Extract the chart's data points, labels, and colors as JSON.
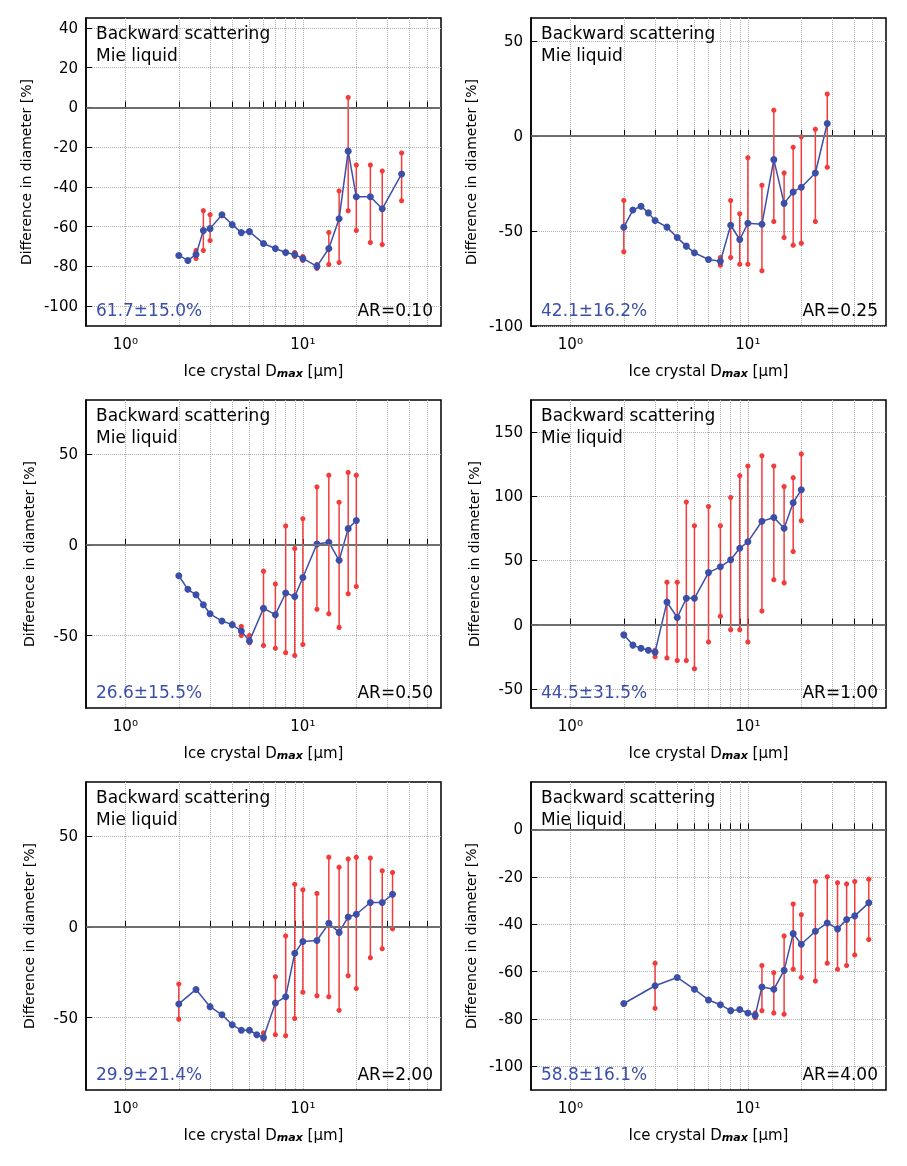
{
  "chart_data": [
    {
      "type": "line",
      "xlabel": "Ice crystal D$_{max}$ [μm]",
      "ylabel": "Difference in diameter [%]",
      "log": "x",
      "xlim": [
        0.6,
        60
      ],
      "ylim": [
        -110,
        45
      ],
      "xticks": [
        {
          "value": 1,
          "label": "10⁰"
        },
        {
          "value": 2,
          "label": null
        },
        {
          "value": 3,
          "label": null
        },
        {
          "value": 4,
          "label": null
        },
        {
          "value": 5,
          "label": null
        },
        {
          "value": 6,
          "label": null
        },
        {
          "value": 7,
          "label": null
        },
        {
          "value": 8,
          "label": null
        },
        {
          "value": 9,
          "label": null
        },
        {
          "value": 10,
          "label": "10¹"
        },
        {
          "value": 20,
          "label": null
        },
        {
          "value": 30,
          "label": null
        },
        {
          "value": 40,
          "label": null
        },
        {
          "value": 50,
          "label": null
        }
      ],
      "yticks": [
        -100,
        -80,
        -60,
        -40,
        -20,
        0,
        20,
        40
      ],
      "grid": true,
      "marker": "circle",
      "line_style": "solid",
      "ref_lines": [
        {
          "axis": "y",
          "value": 0,
          "color": "#808080"
        }
      ],
      "annotations": [
        "Backward scattering",
        "Mie liquid",
        "61.7±15.0%",
        "AR=0.10"
      ],
      "series": [
        {
          "color": "#3c4fa8",
          "x": [
            2,
            2.25,
            2.5,
            2.75,
            3,
            3.5,
            4,
            4.5,
            5,
            6,
            7,
            8,
            9,
            10,
            12,
            14,
            16,
            18,
            20,
            24,
            28,
            36
          ],
          "values": [
            -74.5,
            -77,
            -74,
            -62,
            -61,
            -54,
            -59,
            -63,
            -62.5,
            -68.5,
            -71,
            -73,
            -74,
            -76,
            -80,
            -71,
            -56,
            -22,
            -45,
            -45,
            -51,
            -33.5
          ],
          "errors": [
            null,
            null,
            [
              -76,
              -72
            ],
            [
              -72,
              -52
            ],
            [
              -67,
              -54
            ],
            null,
            null,
            null,
            null,
            null,
            null,
            null,
            [
              -75,
              -73
            ],
            [
              -77,
              -75
            ],
            [
              -81,
              -79
            ],
            [
              -79,
              -63
            ],
            [
              -78,
              -42
            ],
            [
              -52,
              5
            ],
            [
              -62,
              -29
            ],
            [
              -68,
              -29
            ],
            [
              -69,
              -32
            ],
            [
              -47,
              -23
            ]
          ]
        }
      ]
    },
    {
      "type": "line",
      "xlabel": "Ice crystal D$_{max}$ [μm]",
      "ylabel": "Difference in diameter [%]",
      "log": "x",
      "xlim": [
        0.6,
        60
      ],
      "ylim": [
        -100,
        62
      ],
      "xticks": [
        {
          "value": 1,
          "label": "10⁰"
        },
        {
          "value": 2,
          "label": null
        },
        {
          "value": 3,
          "label": null
        },
        {
          "value": 4,
          "label": null
        },
        {
          "value": 5,
          "label": null
        },
        {
          "value": 6,
          "label": null
        },
        {
          "value": 7,
          "label": null
        },
        {
          "value": 8,
          "label": null
        },
        {
          "value": 9,
          "label": null
        },
        {
          "value": 10,
          "label": "10¹"
        },
        {
          "value": 20,
          "label": null
        },
        {
          "value": 30,
          "label": null
        },
        {
          "value": 40,
          "label": null
        },
        {
          "value": 50,
          "label": null
        }
      ],
      "yticks": [
        -100,
        -50,
        0,
        50
      ],
      "grid": true,
      "marker": "circle",
      "line_style": "solid",
      "ref_lines": [
        {
          "axis": "y",
          "value": 0,
          "color": "#808080"
        }
      ],
      "annotations": [
        "Backward scattering",
        "Mie liquid",
        "42.1±16.2%",
        "AR=0.25"
      ],
      "series": [
        {
          "color": "#3c4fa8",
          "x": [
            2,
            2.25,
            2.5,
            2.75,
            3,
            3.5,
            4,
            4.5,
            5,
            6,
            7,
            8,
            9,
            10,
            12,
            14,
            16,
            18,
            20,
            24,
            28
          ],
          "values": [
            -48,
            -39,
            -37,
            -40.5,
            -44.5,
            -48,
            -53.5,
            -58,
            -61.5,
            -65,
            -66,
            -47,
            -54.5,
            -46,
            -46.5,
            -12.5,
            -35.5,
            -29.5,
            -27,
            -19.5,
            6.5
          ],
          "errors": [
            [
              -61,
              -34
            ],
            null,
            null,
            null,
            null,
            null,
            null,
            null,
            null,
            null,
            [
              -68,
              -64
            ],
            [
              -64,
              -34
            ],
            [
              -67.5,
              -41
            ],
            [
              -67.5,
              -11.5
            ],
            [
              -71,
              -26
            ],
            [
              -45,
              13.5
            ],
            [
              -53.5,
              -19.5
            ],
            [
              -57.5,
              -6
            ],
            [
              -56.5,
              -0.5
            ],
            [
              -45,
              3.5
            ],
            [
              -16.5,
              22
            ]
          ]
        }
      ]
    },
    {
      "type": "line",
      "xlabel": "Ice crystal D$_{max}$ [μm]",
      "ylabel": "Difference in diameter [%]",
      "log": "x",
      "xlim": [
        0.6,
        60
      ],
      "ylim": [
        -90,
        80
      ],
      "xticks": [
        {
          "value": 1,
          "label": "10⁰"
        },
        {
          "value": 2,
          "label": null
        },
        {
          "value": 3,
          "label": null
        },
        {
          "value": 4,
          "label": null
        },
        {
          "value": 5,
          "label": null
        },
        {
          "value": 6,
          "label": null
        },
        {
          "value": 7,
          "label": null
        },
        {
          "value": 8,
          "label": null
        },
        {
          "value": 9,
          "label": null
        },
        {
          "value": 10,
          "label": "10¹"
        },
        {
          "value": 20,
          "label": null
        },
        {
          "value": 30,
          "label": null
        },
        {
          "value": 40,
          "label": null
        },
        {
          "value": 50,
          "label": null
        }
      ],
      "yticks": [
        -50,
        0,
        50
      ],
      "grid": true,
      "marker": "circle",
      "line_style": "solid",
      "ref_lines": [
        {
          "axis": "y",
          "value": 0,
          "color": "#808080"
        }
      ],
      "annotations": [
        "Backward scattering",
        "Mie liquid",
        "26.6±15.5%",
        "AR=0.50"
      ],
      "series": [
        {
          "color": "#3c4fa8",
          "x": [
            2,
            2.25,
            2.5,
            2.75,
            3,
            3.5,
            4,
            4.5,
            5,
            6,
            7,
            8,
            9,
            10,
            12,
            14,
            16,
            18,
            20
          ],
          "values": [
            -17,
            -24.5,
            -27.5,
            -33,
            -38,
            -42,
            -44,
            -47.5,
            -53,
            -35,
            -38.5,
            -26.5,
            -28.5,
            -18,
            0.5,
            1.5,
            -8.5,
            9,
            13.5
          ],
          "errors": [
            null,
            null,
            null,
            null,
            null,
            null,
            null,
            [
              -50,
              -45
            ],
            [
              -54,
              -50
            ],
            [
              -55.5,
              -14.5
            ],
            [
              -57,
              -21.5
            ],
            [
              -59.5,
              10.5
            ],
            [
              -61,
              -2
            ],
            [
              -55,
              14.5
            ],
            [
              -35.5,
              32
            ],
            [
              -38,
              38.5
            ],
            [
              -45.5,
              23.5
            ],
            [
              -27,
              40
            ],
            [
              -23,
              38.5
            ]
          ]
        }
      ]
    },
    {
      "type": "line",
      "xlabel": "Ice crystal D$_{max}$ [μm]",
      "ylabel": "Difference in diameter [%]",
      "log": "x",
      "xlim": [
        0.6,
        60
      ],
      "ylim": [
        -65,
        175
      ],
      "xticks": [
        {
          "value": 1,
          "label": "10⁰"
        },
        {
          "value": 2,
          "label": null
        },
        {
          "value": 3,
          "label": null
        },
        {
          "value": 4,
          "label": null
        },
        {
          "value": 5,
          "label": null
        },
        {
          "value": 6,
          "label": null
        },
        {
          "value": 7,
          "label": null
        },
        {
          "value": 8,
          "label": null
        },
        {
          "value": 9,
          "label": null
        },
        {
          "value": 10,
          "label": "10¹"
        },
        {
          "value": 20,
          "label": null
        },
        {
          "value": 30,
          "label": null
        },
        {
          "value": 40,
          "label": null
        },
        {
          "value": 50,
          "label": null
        }
      ],
      "yticks": [
        -50,
        0,
        50,
        100,
        150
      ],
      "grid": true,
      "marker": "circle",
      "line_style": "solid",
      "ref_lines": [
        {
          "axis": "y",
          "value": 0,
          "color": "#808080"
        }
      ],
      "annotations": [
        "Backward scattering",
        "Mie liquid",
        "44.5±31.5%",
        "AR=1.00"
      ],
      "series": [
        {
          "color": "#3c4fa8",
          "x": [
            2,
            2.25,
            2.5,
            2.75,
            3,
            3.5,
            4,
            4.5,
            5,
            6,
            7,
            8,
            9,
            10,
            12,
            14,
            16,
            18,
            20
          ],
          "values": [
            -8,
            -16,
            -18.5,
            -20,
            -21.5,
            17.5,
            5.5,
            20.5,
            20.5,
            40.5,
            45,
            50.5,
            59.5,
            64.5,
            80.5,
            83.5,
            75,
            95,
            105
          ],
          "errors": [
            null,
            null,
            null,
            null,
            [
              -25,
              -20
            ],
            [
              -26,
              33
            ],
            [
              -28,
              33
            ],
            [
              -28,
              95.5
            ],
            [
              -34.5,
              77
            ],
            [
              -13.5,
              92
            ],
            [
              6.5,
              77
            ],
            [
              -4,
              99
            ],
            [
              -4,
              116
            ],
            [
              -13.5,
              123.5
            ],
            [
              10.5,
              131.5
            ],
            [
              35,
              123.5
            ],
            [
              32.5,
              107.5
            ],
            [
              57,
              114.5
            ],
            [
              81,
              133
            ]
          ]
        }
      ]
    },
    {
      "type": "line",
      "xlabel": "Ice crystal D$_{max}$ [μm]",
      "ylabel": "Difference in diameter [%]",
      "log": "x",
      "xlim": [
        0.6,
        60
      ],
      "ylim": [
        -90,
        80
      ],
      "xticks": [
        {
          "value": 1,
          "label": "10⁰"
        },
        {
          "value": 2,
          "label": null
        },
        {
          "value": 3,
          "label": null
        },
        {
          "value": 4,
          "label": null
        },
        {
          "value": 5,
          "label": null
        },
        {
          "value": 6,
          "label": null
        },
        {
          "value": 7,
          "label": null
        },
        {
          "value": 8,
          "label": null
        },
        {
          "value": 9,
          "label": null
        },
        {
          "value": 10,
          "label": "10¹"
        },
        {
          "value": 20,
          "label": null
        },
        {
          "value": 30,
          "label": null
        },
        {
          "value": 40,
          "label": null
        },
        {
          "value": 50,
          "label": null
        }
      ],
      "yticks": [
        -50,
        0,
        50
      ],
      "grid": true,
      "marker": "circle",
      "line_style": "solid",
      "ref_lines": [
        {
          "axis": "y",
          "value": 0,
          "color": "#808080"
        }
      ],
      "annotations": [
        "Backward scattering",
        "Mie liquid",
        "29.9±21.4%",
        "AR=2.00"
      ],
      "series": [
        {
          "color": "#3c4fa8",
          "x": [
            2,
            2.5,
            3,
            3.5,
            4,
            4.5,
            5,
            5.5,
            6,
            7,
            8,
            9,
            10,
            12,
            14,
            16,
            18,
            20,
            24,
            28,
            32
          ],
          "values": [
            -42.5,
            -34.5,
            -44,
            -48.5,
            -54,
            -57,
            -57,
            -59.5,
            -61,
            -42,
            -38.5,
            -14.5,
            -8,
            -7.5,
            2,
            -3,
            5.5,
            7,
            13.5,
            13.5,
            18
          ],
          "errors": [
            [
              -51,
              -31.5
            ],
            null,
            null,
            null,
            null,
            null,
            null,
            null,
            [
              -62,
              -58.5
            ],
            [
              -59.5,
              -27.5
            ],
            [
              -60,
              -5
            ],
            [
              -50.5,
              23.5
            ],
            [
              -36,
              20.5
            ],
            [
              -38,
              18.5
            ],
            [
              -38.5,
              38.5
            ],
            [
              -46,
              33
            ],
            [
              -27,
              37.5
            ],
            [
              -34,
              38.5
            ],
            [
              -17,
              38
            ],
            [
              -12,
              31
            ],
            [
              -1,
              30
            ]
          ]
        }
      ]
    },
    {
      "type": "line",
      "xlabel": "Ice crystal D$_{max}$ [μm]",
      "ylabel": "Difference in diameter [%]",
      "log": "x",
      "xlim": [
        0.6,
        60
      ],
      "ylim": [
        -110,
        20
      ],
      "xticks": [
        {
          "value": 1,
          "label": "10⁰"
        },
        {
          "value": 2,
          "label": null
        },
        {
          "value": 3,
          "label": null
        },
        {
          "value": 4,
          "label": null
        },
        {
          "value": 5,
          "label": null
        },
        {
          "value": 6,
          "label": null
        },
        {
          "value": 7,
          "label": null
        },
        {
          "value": 8,
          "label": null
        },
        {
          "value": 9,
          "label": null
        },
        {
          "value": 10,
          "label": "10¹"
        },
        {
          "value": 20,
          "label": null
        },
        {
          "value": 30,
          "label": null
        },
        {
          "value": 40,
          "label": null
        },
        {
          "value": 50,
          "label": null
        }
      ],
      "yticks": [
        -100,
        -80,
        -60,
        -40,
        -20,
        0
      ],
      "grid": true,
      "marker": "circle",
      "line_style": "solid",
      "ref_lines": [
        {
          "axis": "y",
          "value": 0,
          "color": "#808080"
        }
      ],
      "annotations": [
        "Backward scattering",
        "Mie liquid",
        "58.8±16.1%",
        "AR=4.00"
      ],
      "series": [
        {
          "color": "#3c4fa8",
          "x": [
            2,
            3,
            4,
            5,
            6,
            7,
            8,
            9,
            10,
            11,
            12,
            14,
            16,
            18,
            20,
            24,
            28,
            32,
            36,
            40,
            48
          ],
          "values": [
            -73.5,
            -66,
            -62.5,
            -67.5,
            -72,
            -74,
            -76.5,
            -76,
            -77.5,
            -78.5,
            -66.5,
            -67.5,
            -59.5,
            -44,
            -48.5,
            -43,
            -39.5,
            -42,
            -38,
            -36.5,
            -31
          ],
          "errors": [
            null,
            [
              -75.5,
              -56.5
            ],
            null,
            null,
            null,
            null,
            null,
            null,
            null,
            [
              -79.5,
              -77.5
            ],
            [
              -76.5,
              -57.5
            ],
            [
              -77.5,
              -60.5
            ],
            [
              -78,
              -45
            ],
            [
              -59,
              -31.5
            ],
            [
              -62.5,
              -36
            ],
            [
              -64,
              -22
            ],
            [
              -56.5,
              -20
            ],
            [
              -59,
              -22.5
            ],
            [
              -57.5,
              -23
            ],
            [
              -53,
              -22
            ],
            [
              -46.5,
              -21
            ]
          ]
        }
      ]
    }
  ]
}
